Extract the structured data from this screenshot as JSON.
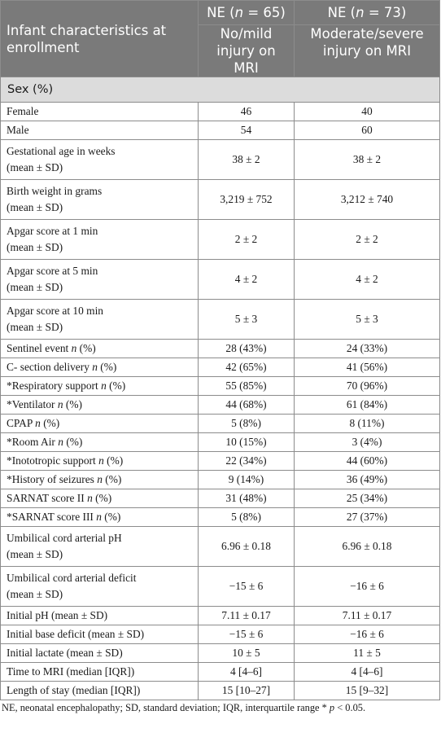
{
  "header": {
    "first_col": "Infant characteristics at enrollment",
    "col2": {
      "prefix": "NE (",
      "var": "n",
      "suffix": " = 65)",
      "sub": "No/mild injury on MRI"
    },
    "col3": {
      "prefix": "NE (",
      "var": "n",
      "suffix": " = 73)",
      "sub": "Moderate/severe injury on MRI"
    }
  },
  "section": "Sex (%)",
  "rows": [
    {
      "label": "Female",
      "n_marker": false,
      "a": "46",
      "b": "40"
    },
    {
      "label": "Male",
      "n_marker": false,
      "a": "54",
      "b": "60"
    },
    {
      "label": "Gestational age in weeks",
      "sub": "(mean ± SD)",
      "a": "38 ± 2",
      "b": "38 ± 2"
    },
    {
      "label": "Birth weight in grams",
      "sub": "(mean ± SD)",
      "a": "3,219 ± 752",
      "b": "3,212 ± 740"
    },
    {
      "label": "Apgar score at 1 min",
      "sub": "(mean ± SD)",
      "a": "2 ± 2",
      "b": "2 ± 2"
    },
    {
      "label": "Apgar score at 5 min",
      "sub": "(mean ± SD)",
      "a": "4 ± 2",
      "b": "4 ± 2"
    },
    {
      "label": "Apgar score at 10 min",
      "sub": "(mean ± SD)",
      "a": "5 ± 3",
      "b": "5 ± 3"
    },
    {
      "label": "Sentinel event",
      "n_marker": true,
      "a": "28 (43%)",
      "b": "24 (33%)"
    },
    {
      "label": "C- section delivery",
      "n_marker": true,
      "a": "42 (65%)",
      "b": "41 (56%)"
    },
    {
      "label": "*Respiratory support",
      "n_marker": true,
      "a": "55 (85%)",
      "b": "70 (96%)"
    },
    {
      "label": "*Ventilator",
      "n_marker": true,
      "a": "44 (68%)",
      "b": "61 (84%)"
    },
    {
      "label": "CPAP",
      "n_marker": true,
      "a": "5 (8%)",
      "b": "8 (11%)"
    },
    {
      "label": "*Room Air",
      "n_marker": true,
      "a": "10 (15%)",
      "b": "3 (4%)"
    },
    {
      "label": "*Inototropic support",
      "n_marker": true,
      "a": "22 (34%)",
      "b": "44 (60%)"
    },
    {
      "label": "*History of seizures",
      "n_marker": true,
      "a": "9 (14%)",
      "b": "36 (49%)"
    },
    {
      "label": "SARNAT score II",
      "n_marker": true,
      "a": "31 (48%)",
      "b": "25 (34%)"
    },
    {
      "label": "*SARNAT score III",
      "n_marker": true,
      "a": "5 (8%)",
      "b": "27 (37%)"
    },
    {
      "label": "Umbilical cord arterial pH",
      "sub": "(mean ± SD)",
      "a": "6.96 ± 0.18",
      "b": "6.96 ± 0.18"
    },
    {
      "label": "Umbilical cord arterial deficit",
      "sub": "(mean ± SD)",
      "a": "−15 ± 6",
      "b": "−16 ± 6"
    },
    {
      "label": "Initial pH (mean ± SD)",
      "n_marker": false,
      "a": "7.11 ± 0.17",
      "b": "7.11 ± 0.17"
    },
    {
      "label": "Initial base deficit (mean ± SD)",
      "n_marker": false,
      "a": "−15 ± 6",
      "b": "−16 ± 6"
    },
    {
      "label": "Initial lactate (mean ± SD)",
      "n_marker": false,
      "a": "10 ± 5",
      "b": "11 ± 5"
    },
    {
      "label": "Time to MRI (median [IQR])",
      "n_marker": false,
      "a": "4 [4–6]",
      "b": "4 [4–6]"
    },
    {
      "label": "Length of stay (median [IQR])",
      "n_marker": false,
      "a": "15 [10–27]",
      "b": "15 [9–32]"
    }
  ],
  "n_symbol": "n",
  "n_suffix": " (%)",
  "footnote": {
    "text": "NE, neonatal encephalopathy; SD, standard deviation; IQR, interquartile range * ",
    "p_var": "p",
    "p_rest": " < 0.05."
  }
}
